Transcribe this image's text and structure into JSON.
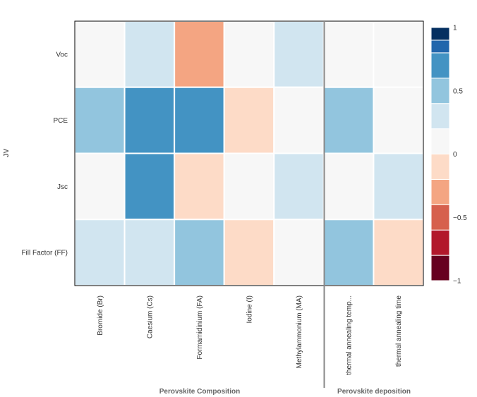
{
  "chart_data": {
    "type": "heatmap",
    "title": "",
    "ylabel": "JV",
    "rows": [
      "Voc",
      "PCE",
      "Jsc",
      "Fill Factor (FF)"
    ],
    "columns": [
      "Bromide (Br)",
      "Caesium (Cs)",
      "Formamidinium (FA)",
      "Iodine (I)",
      "Methylammonium (MA)",
      "thermal annealing temp...",
      "thermal annealing time"
    ],
    "column_groups": [
      {
        "label": "Perovskite Composition",
        "columns": [
          "Bromide (Br)",
          "Caesium (Cs)",
          "Formamidinium (FA)",
          "Iodine (I)",
          "Methylammonium (MA)"
        ]
      },
      {
        "label": "Perovskite deposition",
        "columns": [
          "thermal annealing temp...",
          "thermal annealing time"
        ]
      }
    ],
    "values": [
      [
        0.0,
        0.2,
        -0.4,
        0.0,
        0.2,
        0.0,
        0.0
      ],
      [
        0.4,
        0.6,
        0.6,
        -0.2,
        0.0,
        0.4,
        0.0
      ],
      [
        0.0,
        0.6,
        -0.2,
        0.0,
        0.2,
        0.0,
        0.2
      ],
      [
        0.2,
        0.2,
        0.4,
        -0.2,
        0.0,
        0.4,
        -0.2
      ]
    ],
    "colorbar": {
      "range": [
        -1,
        1
      ],
      "tick_values": [
        1,
        0.5,
        0,
        -0.5,
        -1
      ],
      "tick_labels": [
        "1",
        "0.5",
        "0",
        "−0.5",
        "−1"
      ],
      "bins": [
        {
          "from": -1.0,
          "to": -0.8,
          "color": "#67001f"
        },
        {
          "from": -0.8,
          "to": -0.6,
          "color": "#b2182b"
        },
        {
          "from": -0.6,
          "to": -0.4,
          "color": "#d6604d"
        },
        {
          "from": -0.4,
          "to": -0.2,
          "color": "#f4a582"
        },
        {
          "from": -0.2,
          "to": 0.0,
          "color": "#fddbc7"
        },
        {
          "from": 0.0,
          "to": 0.2,
          "color": "#f7f7f7"
        },
        {
          "from": 0.2,
          "to": 0.4,
          "color": "#d1e5f0"
        },
        {
          "from": 0.4,
          "to": 0.6,
          "color": "#92c5de"
        },
        {
          "from": 0.6,
          "to": 0.8,
          "color": "#4393c3"
        },
        {
          "from": 0.8,
          "to": 0.9,
          "color": "#2166ac"
        },
        {
          "from": 0.9,
          "to": 1.0,
          "color": "#053061"
        }
      ]
    },
    "legend_position": "right"
  }
}
